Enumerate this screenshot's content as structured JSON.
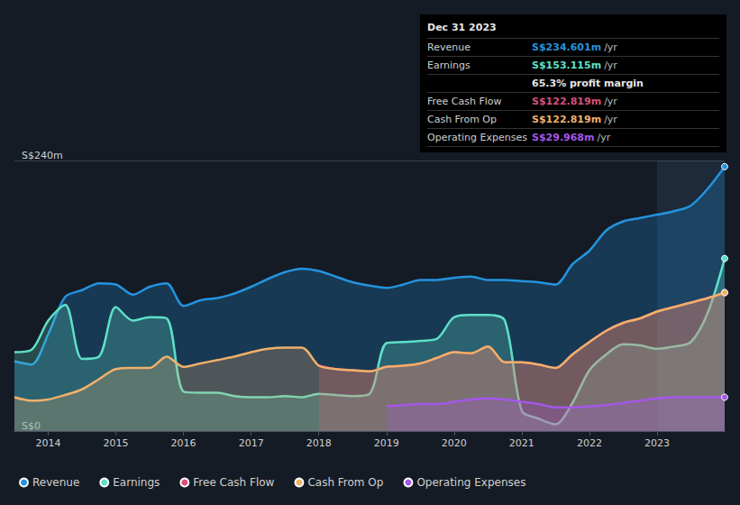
{
  "chart_data": {
    "type": "area",
    "x": [
      2013.5,
      2013.75,
      2014,
      2014.25,
      2014.5,
      2014.75,
      2015,
      2015.25,
      2015.5,
      2015.75,
      2016,
      2016.25,
      2016.5,
      2016.75,
      2017,
      2017.25,
      2017.5,
      2017.75,
      2018,
      2018.25,
      2018.5,
      2018.75,
      2019,
      2019.25,
      2019.5,
      2019.75,
      2020,
      2020.25,
      2020.5,
      2020.75,
      2021,
      2021.25,
      2021.5,
      2021.75,
      2022,
      2022.25,
      2022.5,
      2022.75,
      2023,
      2023.25,
      2023.5,
      2023.75,
      2024
    ],
    "series": [
      {
        "name": "Revenue",
        "color": "#2394df",
        "values": [
          62,
          59,
          86,
          119,
          125,
          131,
          130,
          121,
          128,
          131,
          111,
          116,
          118,
          122,
          128,
          135,
          141,
          144,
          142,
          137,
          132,
          129,
          127,
          130,
          134,
          134,
          136,
          137,
          134,
          134,
          133,
          132,
          130,
          148,
          160,
          178,
          186,
          189,
          192,
          195,
          200,
          215,
          234.6
        ]
      },
      {
        "name": "Earnings",
        "color": "#5ee0c8",
        "values": [
          70,
          72,
          98,
          112,
          64,
          66,
          110,
          98,
          101,
          100,
          35,
          34,
          34,
          31,
          30,
          30,
          31,
          30,
          33,
          32,
          31,
          33,
          78,
          79,
          80,
          82,
          101,
          103,
          103,
          98,
          18,
          11,
          6,
          25,
          54,
          68,
          77,
          76,
          73,
          75,
          79,
          105,
          153.1
        ]
      },
      {
        "name": "Free Cash Flow",
        "color": "#d94f7a",
        "values": [
          null,
          null,
          null,
          null,
          null,
          null,
          null,
          null,
          null,
          null,
          null,
          null,
          null,
          null,
          null,
          null,
          null,
          null,
          58,
          55,
          54,
          53,
          57,
          58,
          60,
          65,
          70,
          69,
          75,
          61,
          61,
          59,
          56,
          68,
          79,
          89,
          96,
          100,
          106,
          110,
          114,
          118,
          122.8
        ]
      },
      {
        "name": "Cash From Op",
        "color": "#f0b06a",
        "values": [
          30,
          27,
          28,
          32,
          37,
          46,
          55,
          56,
          56,
          66,
          57,
          60,
          63,
          66,
          70,
          73,
          74,
          74,
          58,
          55,
          54,
          53,
          57,
          58,
          60,
          65,
          70,
          69,
          75,
          61,
          61,
          59,
          56,
          68,
          79,
          89,
          96,
          100,
          106,
          110,
          114,
          118,
          122.8
        ]
      },
      {
        "name": "Operating Expenses",
        "color": "#a557e8",
        "values": [
          null,
          null,
          null,
          null,
          null,
          null,
          null,
          null,
          null,
          null,
          null,
          null,
          null,
          null,
          null,
          null,
          null,
          null,
          null,
          null,
          null,
          null,
          22,
          23,
          24,
          24,
          26,
          28,
          29,
          28,
          26,
          24,
          21,
          21,
          22,
          23,
          25,
          27,
          29,
          30,
          30,
          30,
          30
        ]
      }
    ],
    "xlim": [
      2013.5,
      2024
    ],
    "xticks": [
      2014,
      2015,
      2016,
      2017,
      2018,
      2019,
      2020,
      2021,
      2022,
      2023
    ],
    "ylim": [
      0,
      240
    ],
    "yticks": [
      {
        "value": 0,
        "label": "S$0"
      },
      {
        "value": 240,
        "label": "S$240m"
      }
    ],
    "grid": true,
    "legend": "bottom",
    "shaded_range": [
      2023,
      2024
    ],
    "annotation": {
      "title": "Dec 31 2023",
      "rows": [
        {
          "label": "Revenue",
          "value": "S$234.601m",
          "unit": "/yr",
          "color": "#2394df"
        },
        {
          "label": "Earnings",
          "value": "S$153.115m",
          "unit": "/yr",
          "color": "#5ee0c8"
        },
        {
          "value": "65.3% profit margin",
          "color": "#e6e6e6"
        },
        {
          "label": "Free Cash Flow",
          "value": "S$122.819m",
          "unit": "/yr",
          "color": "#d94f7a"
        },
        {
          "label": "Cash From Op",
          "value": "S$122.819m",
          "unit": "/yr",
          "color": "#f0b06a"
        },
        {
          "label": "Operating Expenses",
          "value": "S$29.968m",
          "unit": "/yr",
          "color": "#a557e8"
        }
      ]
    }
  }
}
